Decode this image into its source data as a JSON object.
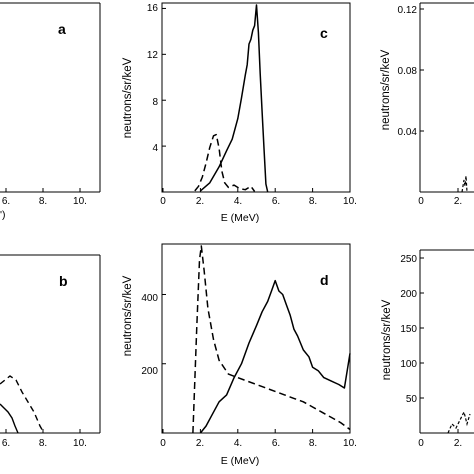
{
  "figure": {
    "x_axis_label": "E (MeV)",
    "y_axis_label": "neutrons/sr/keV"
  },
  "chart_data": [
    {
      "panel": "a",
      "type": "line",
      "position": "top-left (cropped)",
      "xlabel": "E (MeV)",
      "xtick_labels": [
        "6.",
        "8.",
        "10."
      ],
      "ylabel": "",
      "series": []
    },
    {
      "panel": "b",
      "type": "line",
      "position": "bottom-left (cropped)",
      "xlabel": "",
      "xtick_labels": [
        "6.",
        "8.",
        "10."
      ],
      "ylabel": "",
      "series": []
    },
    {
      "panel": "c",
      "type": "line",
      "position": "top-center",
      "xlabel": "E (MeV)",
      "ylabel": "neutrons/sr/keV",
      "xlim": [
        0,
        10
      ],
      "ylim": [
        0,
        16.3
      ],
      "xticks": [
        0,
        2,
        4,
        6,
        8,
        10
      ],
      "xtick_labels": [
        "0",
        "2.",
        "4.",
        "6.",
        "8.",
        "10."
      ],
      "yticks": [
        4,
        8,
        12,
        16
      ],
      "ytick_labels": [
        "4",
        "8",
        "12",
        "16"
      ],
      "series": [
        {
          "style": "solid",
          "x": [
            2.0,
            2.5,
            3.0,
            3.4,
            3.7,
            4.0,
            4.2,
            4.4,
            4.5,
            4.6,
            4.7,
            4.8,
            4.9,
            5.0,
            5.1,
            5.2,
            5.3,
            5.4,
            5.5,
            5.6
          ],
          "y": [
            0.1,
            0.8,
            2.2,
            3.6,
            4.6,
            6.4,
            8.2,
            10.2,
            11.1,
            12.9,
            13.3,
            14.1,
            14.5,
            16.3,
            13.9,
            10.3,
            7.0,
            3.8,
            0.7,
            0.0
          ]
        },
        {
          "style": "dashed",
          "x": [
            1.7,
            1.9,
            2.1,
            2.3,
            2.5,
            2.7,
            2.85,
            3.0,
            3.15,
            3.3,
            3.5,
            3.8,
            4.1,
            4.4,
            4.7,
            4.9
          ],
          "y": [
            0.1,
            0.5,
            1.3,
            2.5,
            3.9,
            4.9,
            5.0,
            3.8,
            1.8,
            0.8,
            0.4,
            0.6,
            0.3,
            0.2,
            0.5,
            0.05
          ]
        }
      ]
    },
    {
      "panel": "d",
      "type": "line",
      "position": "bottom-center",
      "xlabel": "E (MeV)",
      "ylabel": "neutrons/sr/keV",
      "xlim": [
        0,
        10
      ],
      "ylim": [
        0,
        540
      ],
      "xticks": [
        0,
        2,
        4,
        6,
        8,
        10
      ],
      "xtick_labels": [
        "0",
        "2.",
        "4.",
        "6.",
        "8.",
        "10."
      ],
      "yticks": [
        200,
        400
      ],
      "ytick_labels": [
        "200",
        "400"
      ],
      "series": [
        {
          "style": "solid",
          "x": [
            2.0,
            2.3,
            2.6,
            3.0,
            3.4,
            3.8,
            4.2,
            4.6,
            5.0,
            5.3,
            5.6,
            5.8,
            6.0,
            6.2,
            6.4,
            6.6,
            6.8,
            7.0,
            7.2,
            7.5,
            7.8,
            8.0,
            8.3,
            8.6,
            9.0,
            9.4,
            9.7,
            10.0
          ],
          "y": [
            0,
            20,
            50,
            90,
            110,
            160,
            200,
            260,
            310,
            350,
            380,
            410,
            440,
            410,
            400,
            370,
            340,
            300,
            280,
            240,
            220,
            190,
            180,
            160,
            150,
            140,
            130,
            230
          ]
        },
        {
          "style": "dashed",
          "x": [
            1.6,
            1.8,
            1.95,
            2.05,
            2.2,
            2.4,
            2.7,
            3.0,
            3.5,
            4.0,
            4.5,
            5.0,
            5.5,
            6.0,
            6.5,
            7.0,
            7.5,
            8.0,
            8.5,
            9.0,
            9.5,
            10.0
          ],
          "y": [
            0,
            300,
            500,
            540,
            470,
            360,
            270,
            210,
            170,
            160,
            150,
            140,
            130,
            120,
            110,
            100,
            90,
            75,
            60,
            45,
            30,
            10
          ]
        }
      ]
    },
    {
      "panel": "e",
      "type": "line",
      "position": "top-right (cropped)",
      "xlabel": "",
      "ylabel": "neutrons/sr/keV",
      "xtick_labels": [
        "0",
        "2."
      ],
      "ytick_labels": [
        "0.04",
        "0.08",
        "0.12"
      ],
      "series": []
    },
    {
      "panel": "f",
      "type": "line",
      "position": "bottom-right (cropped)",
      "xlabel": "",
      "ylabel": "neutrons/sr/keV",
      "xtick_labels": [
        "0",
        "2."
      ],
      "ytick_labels": [
        "50",
        "100",
        "150",
        "200",
        "250"
      ],
      "series": []
    }
  ],
  "panels": {
    "a": {
      "label": "a",
      "xticks": [
        "6.",
        "8.",
        "10."
      ],
      "xlabel_fragment": "')"
    },
    "b": {
      "label": "b",
      "xticks": [
        "6.",
        "8.",
        "10."
      ]
    },
    "c": {
      "label": "c",
      "xlabel": "E (MeV)",
      "yticks": [
        "16",
        "12",
        "8",
        "4"
      ],
      "xticks": [
        "0",
        "2.",
        "4.",
        "6.",
        "8.",
        "10."
      ],
      "ylabel": "neutrons/sr/keV"
    },
    "d": {
      "label": "d",
      "xlabel": "E (MeV)",
      "yticks": [
        "400",
        "200"
      ],
      "xticks": [
        "0",
        "2.",
        "4.",
        "6.",
        "8.",
        "10."
      ],
      "ylabel": "neutrons/sr/keV"
    },
    "e": {
      "yticks": [
        "0.12",
        "0.08",
        "0.04"
      ],
      "xticks": [
        "0",
        "2."
      ],
      "ylabel": "neutrons/sr/keV"
    },
    "f": {
      "yticks": [
        "250",
        "200",
        "150",
        "100",
        "50"
      ],
      "xticks": [
        "0",
        "2."
      ],
      "ylabel": "neutrons/sr/keV"
    }
  }
}
